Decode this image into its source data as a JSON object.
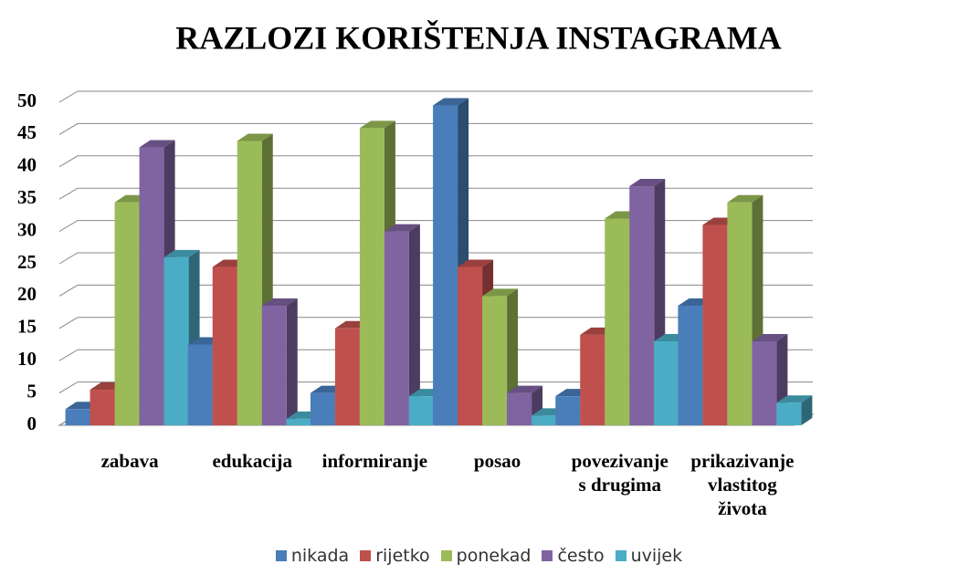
{
  "chart_data": {
    "type": "bar3d",
    "title": "RAZLOZI KORIŠTENJA INSTAGRAMA",
    "categories": [
      "zabava",
      "edukacija",
      "informiranje",
      "posao",
      "povezivanje\ns drugima",
      "prikazivanje\nvlastitog\nživota"
    ],
    "series": [
      {
        "name": "nikada",
        "color": "#4a7ebb",
        "values": [
          2.5,
          12.5,
          5,
          49.5,
          4.5,
          18.5
        ]
      },
      {
        "name": "rijetko",
        "color": "#c0504d",
        "values": [
          5.5,
          24.5,
          15,
          24.5,
          14,
          31
        ]
      },
      {
        "name": "ponekad",
        "color": "#9bbb59",
        "values": [
          34.5,
          44,
          46,
          20,
          32,
          34.5
        ]
      },
      {
        "name": "često",
        "color": "#8064a2",
        "values": [
          43,
          18.5,
          30,
          5,
          37,
          13
        ]
      },
      {
        "name": "uvijek",
        "color": "#4bacc6",
        "values": [
          26,
          1,
          4.5,
          1.5,
          13,
          3.5
        ]
      }
    ],
    "ylim": [
      0,
      50
    ],
    "yticks": [
      0,
      5,
      10,
      15,
      20,
      25,
      30,
      35,
      40,
      45,
      50
    ],
    "grid": true,
    "legend": "bottom"
  }
}
